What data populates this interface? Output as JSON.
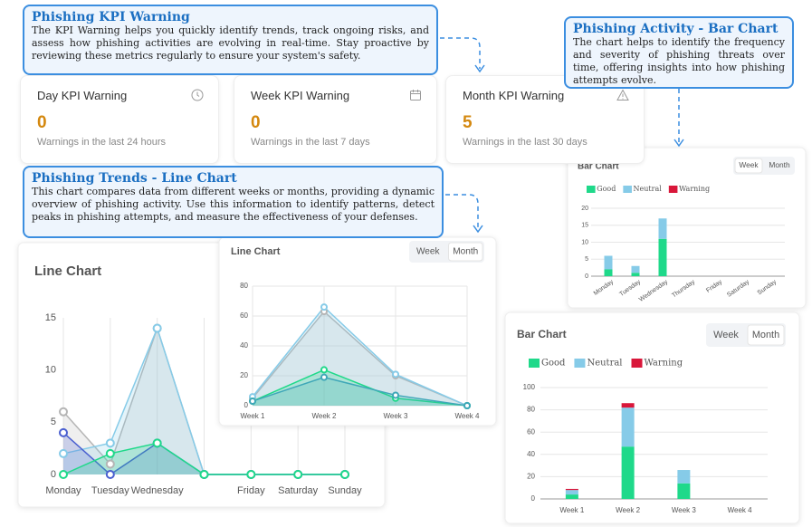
{
  "callouts": [
    {
      "title": "Phishing KPI Warning",
      "text": "The KPI Warning helps you quickly identify trends, track ongoing risks, and assess how phishing activities are evolving in real-time. Stay proactive by reviewing these metrics regularly to ensure your system's safety."
    },
    {
      "title": "Phishing Activity - Bar Chart",
      "text": "The chart helps to identify the frequency and severity of phishing threats over time, offering insights into how phishing attempts evolve."
    },
    {
      "title": "Phishing Trends - Line Chart",
      "text": "This chart compares data from different weeks or months, providing a dynamic overview of phishing activity. Use this information to identify patterns, detect peaks in phishing attempts, and measure the effectiveness of your defenses."
    }
  ],
  "kpi_cards": [
    {
      "title": "Day KPI Warning",
      "value": "0",
      "subtitle": "Warnings in the last 24 hours"
    },
    {
      "title": "Week KPI Warning",
      "value": "0",
      "subtitle": "Warnings in the last 7 days"
    },
    {
      "title": "Month KPI Warning",
      "value": "5",
      "subtitle": "Warnings in the last 30 days"
    }
  ],
  "chart_data": [
    {
      "type": "line",
      "title": "Line Chart",
      "categories": [
        "Monday",
        "Tuesday",
        "Wednesday",
        null,
        "Friday",
        "Saturday",
        "Sunday"
      ],
      "series": [
        {
          "color": "#b5b5b5",
          "values": [
            6,
            1,
            14,
            0,
            0,
            0,
            0
          ]
        },
        {
          "color": "#86cbe8",
          "values": [
            2,
            3,
            14,
            0,
            0,
            0,
            0
          ]
        },
        {
          "color": "#4a5fd0",
          "values": [
            4,
            0,
            3,
            0,
            0,
            0,
            0
          ]
        },
        {
          "color": "#1fd98a",
          "values": [
            0,
            2,
            3,
            0,
            0,
            0,
            0
          ]
        }
      ],
      "ylim": [
        0,
        15
      ],
      "yticks": [
        0,
        5,
        10,
        15
      ],
      "grid": "x"
    },
    {
      "type": "line",
      "title": "Line Chart",
      "toggle": [
        "Week",
        "Month"
      ],
      "selected": 1,
      "categories": [
        "Week 1",
        "Week 2",
        "Week 3",
        "Week 4"
      ],
      "series": [
        {
          "color": "#b5b5b5",
          "values": [
            5,
            63,
            20,
            0
          ]
        },
        {
          "color": "#86cbe8",
          "values": [
            6,
            66,
            21,
            0
          ]
        },
        {
          "color": "#1fd98a",
          "values": [
            3,
            24,
            5,
            0
          ]
        },
        {
          "color": "#3fa7b8",
          "values": [
            3,
            19,
            7,
            0
          ]
        }
      ],
      "ylim": [
        0,
        80
      ],
      "yticks": [
        0,
        20,
        40,
        60,
        80
      ],
      "grid": "both"
    },
    {
      "type": "bar",
      "title": "Bar Chart",
      "toggle": [
        "Week",
        "Month"
      ],
      "selected": 0,
      "categories": [
        "Monday",
        "Tuesday",
        "Wednesday",
        "Thursday",
        "Friday",
        "Saturday",
        "Sunday"
      ],
      "series": [
        {
          "name": "Good",
          "color": "#1fd98a",
          "values": [
            2,
            1,
            11,
            0,
            0,
            0,
            0
          ]
        },
        {
          "name": "Neutral",
          "color": "#86cbe8",
          "values": [
            4,
            2,
            6,
            0,
            0,
            0,
            0
          ]
        },
        {
          "name": "Warning",
          "color": "#d9173a",
          "values": [
            0,
            0,
            0,
            0,
            0,
            0,
            0
          ]
        }
      ],
      "ylim": [
        0,
        20
      ],
      "yticks": [
        0,
        5,
        10,
        15,
        20
      ],
      "grid": "y"
    },
    {
      "type": "bar",
      "title": "Bar Chart",
      "toggle": [
        "Week",
        "Month"
      ],
      "selected": 1,
      "categories": [
        "Week 1",
        "Week 2",
        "Week 3",
        "Week 4"
      ],
      "series": [
        {
          "name": "Good",
          "color": "#1fd98a",
          "values": [
            4,
            47,
            14,
            0
          ]
        },
        {
          "name": "Neutral",
          "color": "#86cbe8",
          "values": [
            4,
            35,
            12,
            0
          ]
        },
        {
          "name": "Warning",
          "color": "#d9173a",
          "values": [
            1,
            4,
            0,
            0
          ]
        }
      ],
      "ylim": [
        0,
        100
      ],
      "yticks": [
        0,
        20,
        40,
        60,
        80,
        100
      ],
      "grid": "y"
    }
  ]
}
